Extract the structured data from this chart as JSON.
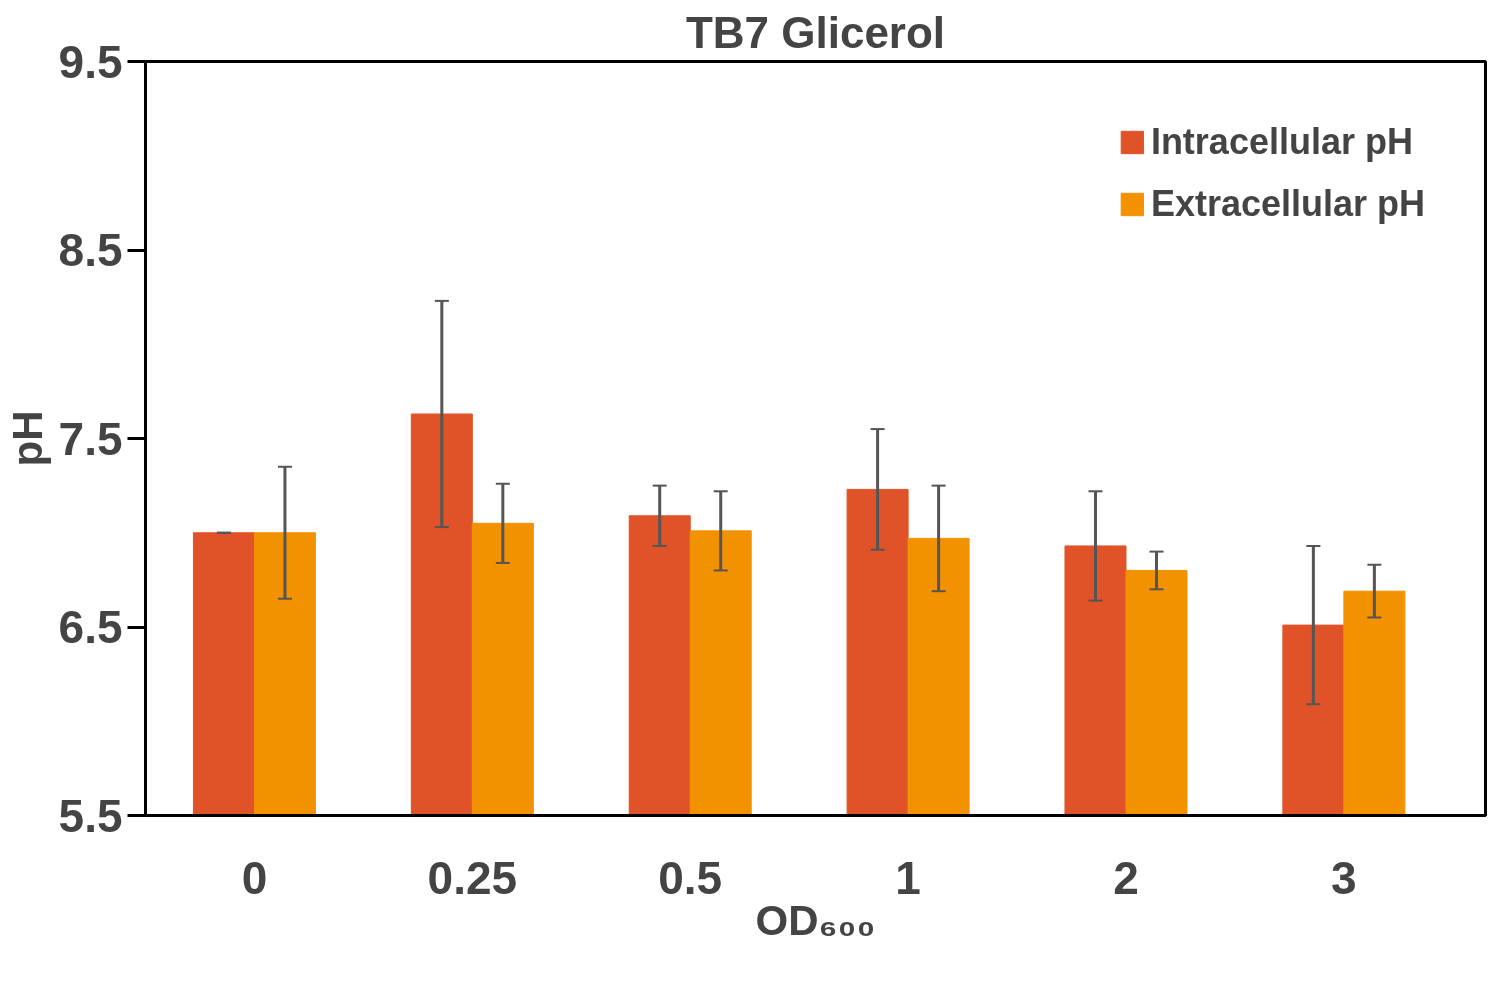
{
  "chart_data": {
    "type": "bar",
    "title": "TB7 Glicerol",
    "xlabel": "OD₆₀₀",
    "ylabel": "pH",
    "categories": [
      "0",
      "0.25",
      "0.5",
      "1",
      "2",
      "3"
    ],
    "series": [
      {
        "name": "Intracellular pH",
        "color": "#e05328",
        "values": [
          7.0,
          7.63,
          7.09,
          7.23,
          6.93,
          6.51
        ],
        "errors": [
          0,
          0.6,
          0.16,
          0.32,
          0.29,
          0.42
        ]
      },
      {
        "name": "Extracellular pH",
        "color": "#f39200",
        "values": [
          7.0,
          7.05,
          7.01,
          6.97,
          6.8,
          6.69
        ],
        "errors": [
          0.35,
          0.21,
          0.21,
          0.28,
          0.1,
          0.14
        ]
      }
    ],
    "ylim": [
      5.5,
      9.5
    ],
    "yticks": [
      5.5,
      6.5,
      7.5,
      8.5,
      9.5
    ],
    "grid": false,
    "legend": "top right"
  }
}
